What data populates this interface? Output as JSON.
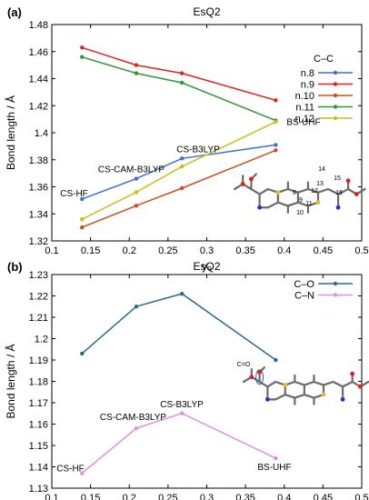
{
  "chart_data": [
    {
      "type": "line",
      "panel_label": "(a)",
      "title": "EsQ2",
      "xlabel": "y₀",
      "ylabel": "Bond length / Å",
      "xlim": [
        0.1,
        0.5
      ],
      "ylim": [
        1.32,
        1.48
      ],
      "xticks": [
        "0.1",
        "0.15",
        "0.2",
        "0.25",
        "0.3",
        "0.35",
        "0.4",
        "0.45",
        "0.5"
      ],
      "yticks": [
        "1.32",
        "1.34",
        "1.36",
        "1.38",
        "1.4",
        "1.42",
        "1.44",
        "1.46",
        "1.48"
      ],
      "legend_title": "C–C",
      "legend_position": "top-right",
      "x": [
        0.139,
        0.209,
        0.268,
        0.389
      ],
      "series": [
        {
          "name": "n.8",
          "color": "#3b6fd6",
          "values": [
            1.351,
            1.366,
            1.381,
            1.391
          ]
        },
        {
          "name": "n.9",
          "color": "#e0201b",
          "values": [
            1.463,
            1.45,
            1.444,
            1.424
          ]
        },
        {
          "name": "n.10",
          "color": "#c9501e",
          "values": [
            1.33,
            1.346,
            1.359,
            1.387
          ]
        },
        {
          "name": "n.11",
          "color": "#2f9a2f",
          "values": [
            1.456,
            1.444,
            1.437,
            1.409
          ]
        },
        {
          "name": "n.12",
          "color": "#c3c21a",
          "values": [
            1.336,
            1.356,
            1.375,
            1.408
          ]
        }
      ],
      "annotations": [
        {
          "text": "CS-HF",
          "x": 0.139,
          "y": 1.351
        },
        {
          "text": "CS-CAM-B3LYP",
          "x": 0.209,
          "y": 1.366
        },
        {
          "text": "CS-B3LYP",
          "x": 0.268,
          "y": 1.381
        },
        {
          "text": "BS-UHF",
          "x": 0.389,
          "y": 1.409
        }
      ],
      "molecule_labels": [
        "8",
        "9",
        "10",
        "11",
        "12",
        "13",
        "14",
        "15",
        "16"
      ]
    },
    {
      "type": "line",
      "panel_label": "(b)",
      "title": "EsQ2",
      "xlabel": "y₀",
      "ylabel": "Bond length / Å",
      "xlim": [
        0.1,
        0.5
      ],
      "ylim": [
        1.13,
        1.23
      ],
      "xticks": [
        "0.1",
        "0.15",
        "0.2",
        "0.25",
        "0.3",
        "0.35",
        "0.4",
        "0.45",
        "0.5"
      ],
      "yticks": [
        "1.13",
        "1.14",
        "1.15",
        "1.16",
        "1.17",
        "1.18",
        "1.19",
        "1.2",
        "1.21",
        "1.22",
        "1.23"
      ],
      "legend_position": "top-right",
      "x": [
        0.139,
        0.209,
        0.268,
        0.389
      ],
      "series": [
        {
          "name": "C–O",
          "color": "#2a6a8f",
          "values": [
            1.193,
            1.215,
            1.221,
            1.19
          ]
        },
        {
          "name": "C–N",
          "color": "#e08ee0",
          "values": [
            1.137,
            1.158,
            1.165,
            1.144
          ]
        }
      ],
      "annotations": [
        {
          "text": "CS-HF",
          "x": 0.139,
          "y": 1.137
        },
        {
          "text": "CS-CAM-B3LYP",
          "x": 0.209,
          "y": 1.158
        },
        {
          "text": "CS-B3LYP",
          "x": 0.268,
          "y": 1.165
        },
        {
          "text": "BS-UHF",
          "x": 0.389,
          "y": 1.144
        }
      ],
      "molecule_labels": [
        "C=O"
      ]
    }
  ]
}
